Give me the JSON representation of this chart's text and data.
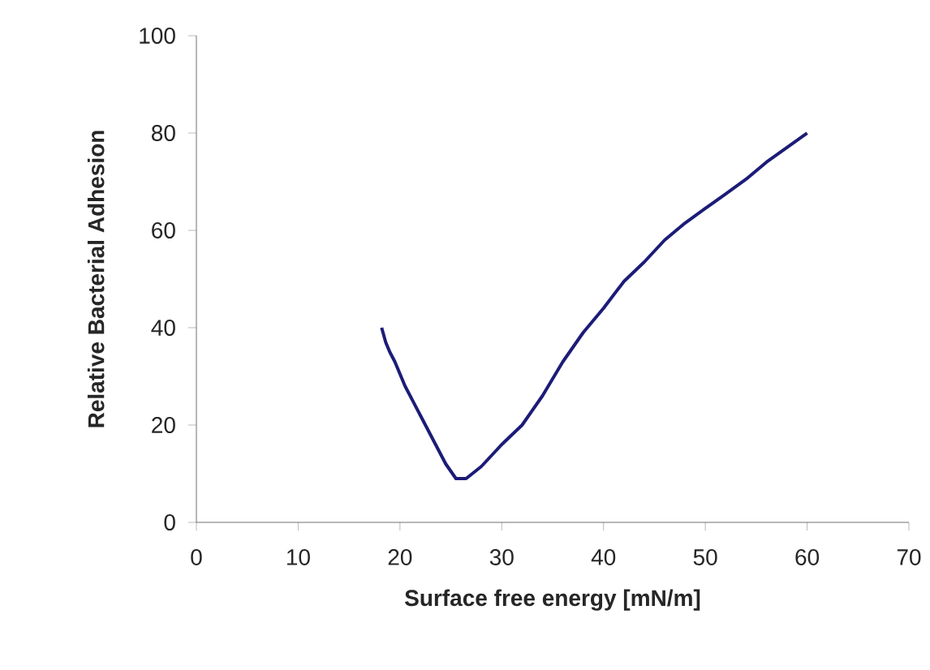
{
  "chart_data": {
    "type": "line",
    "xlabel": "Surface free energy  [mN/m]",
    "ylabel": "Relative Bacterial Adhesion",
    "xlim": [
      0,
      70
    ],
    "ylim": [
      0,
      100
    ],
    "xticks": [
      0,
      10,
      20,
      30,
      40,
      50,
      60,
      70
    ],
    "yticks": [
      0,
      20,
      40,
      60,
      80,
      100
    ],
    "grid": false,
    "marker": "none",
    "line_style": "solid",
    "series": [
      {
        "color": "#1c1c78",
        "x": [
          18.2,
          18.6,
          19,
          19.5,
          20.5,
          22,
          23.5,
          24.5,
          25.5,
          26.5,
          28,
          30,
          32,
          34,
          36,
          38,
          40,
          42,
          44,
          46,
          48,
          50,
          52,
          54,
          56,
          58,
          60
        ],
        "values": [
          40,
          37,
          35,
          33,
          28,
          22,
          16,
          12,
          9,
          9,
          11.5,
          16,
          20,
          26,
          33,
          39,
          44,
          49.5,
          53.5,
          58,
          61.5,
          64.5,
          67.5,
          70.5,
          74,
          77,
          80
        ]
      }
    ]
  }
}
